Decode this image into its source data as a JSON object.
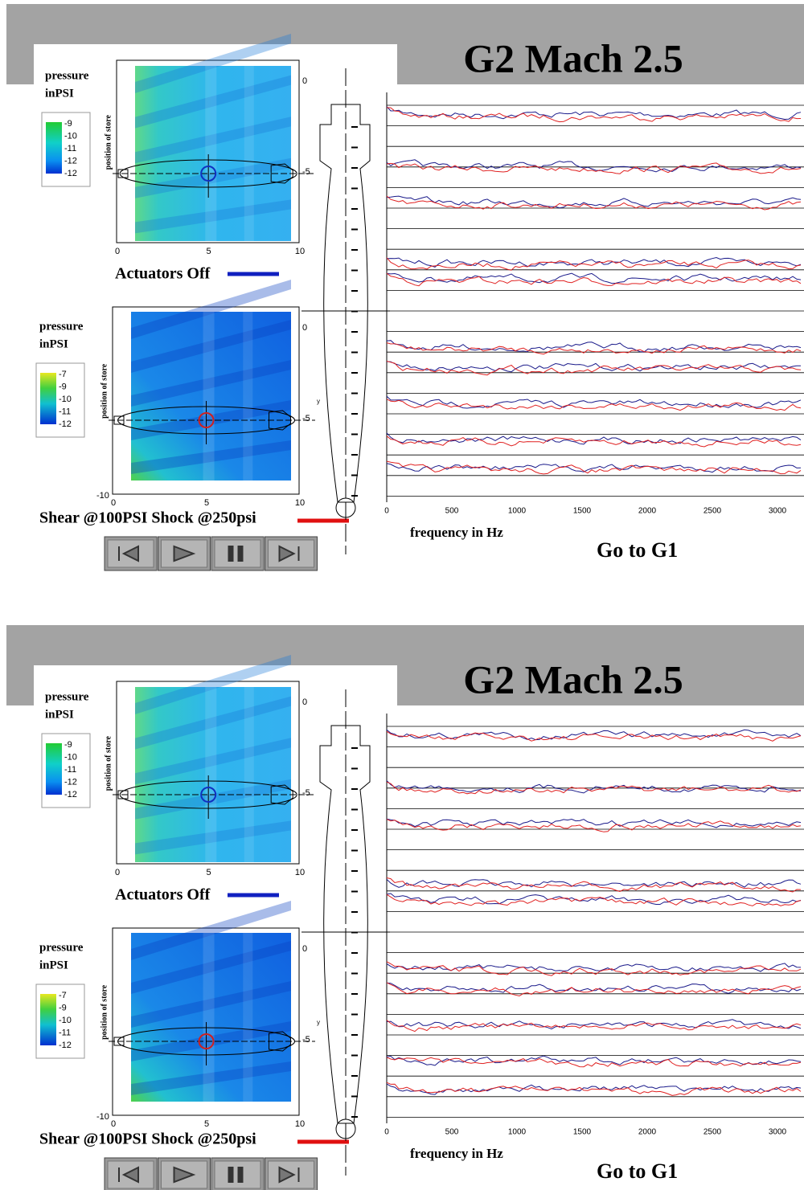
{
  "slides": [
    {
      "title": "G2 Mach 2.5",
      "top_map": {
        "legend_title": [
          "pressure",
          "inPSI"
        ],
        "legend_ticks": [
          "-9",
          "-10",
          "-11",
          "-12",
          "-12"
        ],
        "y_label": "position of store",
        "x_ticks": [
          "0",
          "5",
          "10"
        ],
        "y_ticks": [
          "0",
          "-5"
        ]
      },
      "top_caption": "Actuators Off",
      "bottom_map": {
        "legend_title": [
          "pressure",
          "inPSI"
        ],
        "legend_ticks": [
          "-7",
          "-9",
          "-10",
          "-11",
          "-12"
        ],
        "y_label": "position of store",
        "x_ticks": [
          "0",
          "5",
          "10"
        ],
        "y_ticks": [
          "0",
          "-5"
        ],
        "y_axis_letter": "y",
        "y_min_label": "-10"
      },
      "bottom_caption": "Shear @100PSI Shock @250psi",
      "spectrum": {
        "x_ticks": [
          "0",
          "500",
          "1000",
          "1500",
          "2000",
          "2500",
          "3000"
        ],
        "x_label": "frequency in Hz"
      },
      "link": "Go to G1"
    },
    {
      "title": "G2 Mach 2.5",
      "top_map": {
        "legend_title": [
          "pressure",
          "inPSI"
        ],
        "legend_ticks": [
          "-9",
          "-10",
          "-11",
          "-12",
          "-12"
        ],
        "y_label": "position of store",
        "x_ticks": [
          "0",
          "5",
          "10"
        ],
        "y_ticks": [
          "0",
          "-5"
        ]
      },
      "top_caption": "Actuators Off",
      "bottom_map": {
        "legend_title": [
          "pressure",
          "inPSI"
        ],
        "legend_ticks": [
          "-7",
          "-9",
          "-10",
          "-11",
          "-12"
        ],
        "y_label": "position of store",
        "x_ticks": [
          "0",
          "5",
          "10"
        ],
        "y_ticks": [
          "0",
          "-5"
        ],
        "y_axis_letter": "y",
        "y_min_label": "-10"
      },
      "bottom_caption": "Shear @100PSI Shock @250psi",
      "spectrum": {
        "x_ticks": [
          "0",
          "500",
          "1000",
          "1500",
          "2000",
          "2500",
          "3000"
        ],
        "x_label": "frequency in Hz"
      },
      "link": "Go to G1"
    }
  ]
}
